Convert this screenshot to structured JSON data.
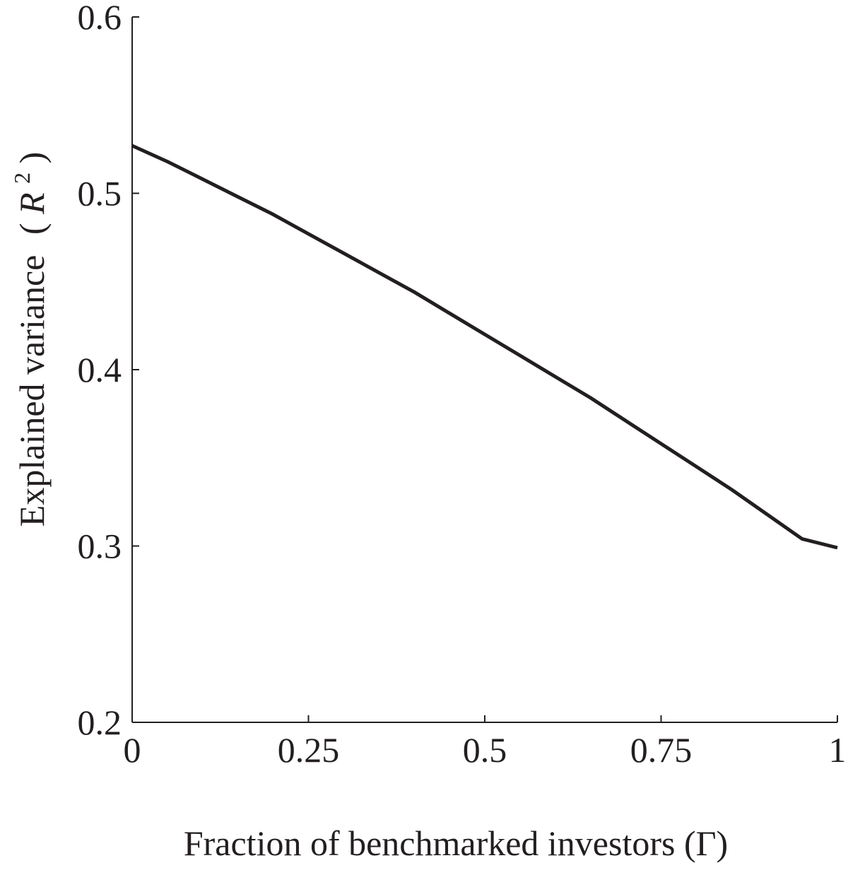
{
  "chart_data": {
    "type": "line",
    "xlabel": "Fraction of benchmarked investors (Γ)",
    "ylabel_main": "Explained variance",
    "ylabel_paren_open": "(",
    "ylabel_var": "R",
    "ylabel_sup": "2",
    "ylabel_paren_close": ")",
    "xlim": [
      0,
      1
    ],
    "ylim": [
      0.2,
      0.6
    ],
    "x_ticks": [
      0,
      0.25,
      0.5,
      0.75,
      1
    ],
    "x_tick_labels": [
      "0",
      "0.25",
      "0.5",
      "0.75",
      "1"
    ],
    "y_ticks": [
      0.2,
      0.3,
      0.4,
      0.5,
      0.6
    ],
    "y_tick_labels": [
      "0.2",
      "0.3",
      "0.4",
      "0.5",
      "0.6"
    ],
    "grid": false,
    "series": [
      {
        "x": [
          0,
          0.05,
          0.1,
          0.15,
          0.2,
          0.25,
          0.3,
          0.35,
          0.4,
          0.45,
          0.5,
          0.55,
          0.6,
          0.65,
          0.7,
          0.75,
          0.8,
          0.85,
          0.9,
          0.95,
          1.0
        ],
        "values": [
          0.527,
          0.518,
          0.508,
          0.498,
          0.488,
          0.477,
          0.466,
          0.455,
          0.444,
          0.432,
          0.42,
          0.408,
          0.396,
          0.384,
          0.371,
          0.358,
          0.345,
          0.332,
          0.318,
          0.304,
          0.299
        ],
        "color": "#231f20"
      }
    ]
  }
}
